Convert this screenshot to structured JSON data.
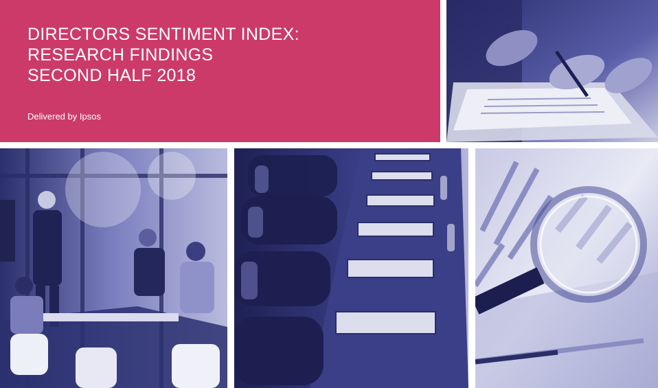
{
  "cover": {
    "title_lines": [
      "DIRECTORS SENTIMENT INDEX:",
      "RESEARCH FINDINGS",
      "SECOND HALF 2018"
    ],
    "subtitle": "Delivered by Ipsos",
    "accent_color": "#cc3a6a",
    "photo_tint": "#3a3f8c"
  },
  "photos": [
    {
      "icon": "handshake-signing-photo"
    },
    {
      "icon": "boardroom-presentation-photo"
    },
    {
      "icon": "empty-boardroom-table-photo"
    },
    {
      "icon": "magnifying-glass-charts-photo"
    }
  ]
}
